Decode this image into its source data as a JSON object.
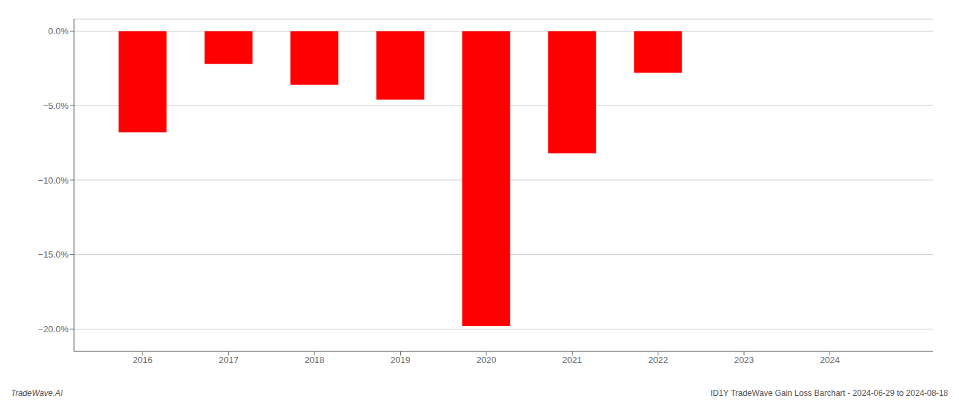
{
  "chart_data": {
    "type": "bar",
    "x": [
      2016,
      2017,
      2018,
      2019,
      2020,
      2021,
      2022,
      2023,
      2024
    ],
    "values": [
      -6.8,
      -2.2,
      -3.6,
      -4.6,
      -19.8,
      -8.2,
      -2.8,
      0.0,
      0.0
    ],
    "color": "#ff0000",
    "xlim": [
      2015.2,
      2025.2
    ],
    "xticks": [
      2016,
      2017,
      2018,
      2019,
      2020,
      2021,
      2022,
      2023,
      2024
    ],
    "ylim": [
      -21.5,
      0.8
    ],
    "yticks": [
      {
        "value": 0.0,
        "label": "0.0%"
      },
      {
        "value": -5.0,
        "label": "−5.0%"
      },
      {
        "value": -10.0,
        "label": "−10.0%"
      },
      {
        "value": -15.0,
        "label": "−15.0%"
      },
      {
        "value": -20.0,
        "label": "−20.0%"
      }
    ],
    "grid": true,
    "annotations": [
      "TradeWave.AI",
      "ID1Y TradeWave Gain Loss Barchart - 2024-06-29 to 2024-08-18"
    ]
  }
}
